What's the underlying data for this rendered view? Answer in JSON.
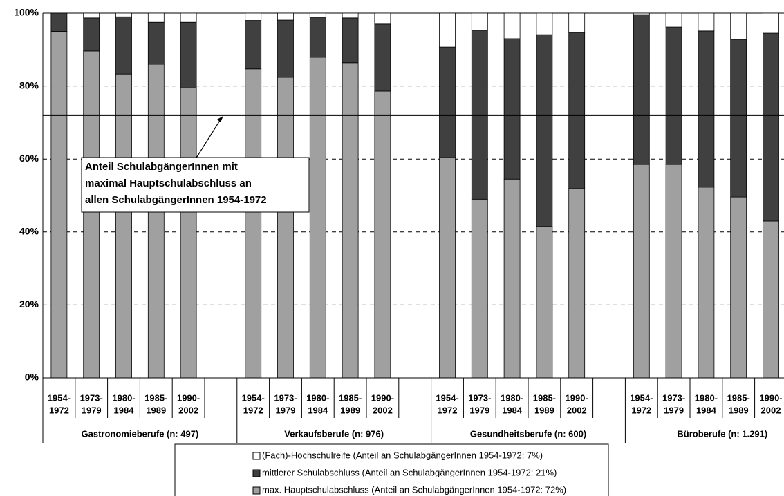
{
  "chart_data": {
    "type": "stacked_bar",
    "ylim": [
      0,
      100
    ],
    "yticks": [
      {
        "value": 0,
        "label": "0%"
      },
      {
        "value": 20,
        "label": "20%"
      },
      {
        "value": 40,
        "label": "40%"
      },
      {
        "value": 60,
        "label": "60%"
      },
      {
        "value": 80,
        "label": "80%"
      },
      {
        "value": 100,
        "label": "100%"
      }
    ],
    "grid": true,
    "groups": [
      {
        "name": "Gastronomieberufe (n: 497)",
        "categories": [
          [
            "1954-",
            "1972"
          ],
          [
            "1973-",
            "1979"
          ],
          [
            "1980-",
            "1984"
          ],
          [
            "1985-",
            "1989"
          ],
          [
            "1990-",
            "2002"
          ]
        ]
      },
      {
        "name": "Verkaufsberufe (n: 976)",
        "categories": [
          [
            "1954-",
            "1972"
          ],
          [
            "1973-",
            "1979"
          ],
          [
            "1980-",
            "1984"
          ],
          [
            "1985-",
            "1989"
          ],
          [
            "1990-",
            "2002"
          ]
        ]
      },
      {
        "name": "Gesundheitsberufe (n: 600)",
        "categories": [
          [
            "1954-",
            "1972"
          ],
          [
            "1973-",
            "1979"
          ],
          [
            "1980-",
            "1984"
          ],
          [
            "1985-",
            "1989"
          ],
          [
            "1990-",
            "2002"
          ]
        ]
      },
      {
        "name": "Büroberufe (n: 1.291)",
        "categories": [
          [
            "1954-",
            "1972"
          ],
          [
            "1973-",
            "1979"
          ],
          [
            "1980-",
            "1984"
          ],
          [
            "1985-",
            "1989"
          ],
          [
            "1990-",
            "2002"
          ]
        ]
      }
    ],
    "series": [
      {
        "name": "max. Hauptschulabschluss (Anteil an SchulabgängerInnen 1954-1972: 72%)",
        "color": "#a0a0a0",
        "values": [
          95,
          89.6,
          83.3,
          86,
          79.5,
          84.7,
          82.4,
          87.9,
          86.4,
          78.6,
          60.4,
          49,
          54.5,
          41.5,
          51.9,
          58.5,
          58.5,
          52.3,
          49.6,
          43
        ]
      },
      {
        "name": "mittlerer Schulabschluss (Anteil an SchulabgängerInnen 1954-1972: 21%)",
        "color": "#404040",
        "values": [
          5,
          9.1,
          15.7,
          11.5,
          18,
          13.3,
          15.7,
          11,
          12.3,
          18.4,
          30.3,
          46.3,
          38.5,
          52.6,
          42.8,
          41.1,
          37.7,
          42.8,
          43.2,
          51.5
        ]
      },
      {
        "name": "(Fach)-Hochschulreife (Anteil an SchulabgängerInnen 1954-1972: 7%)",
        "color": "#ffffff",
        "values": [
          0,
          1.3,
          1,
          2.5,
          2.5,
          2,
          1.9,
          1.1,
          1.3,
          3,
          9.3,
          4.7,
          7,
          5.9,
          5.3,
          0.4,
          3.8,
          4.9,
          7.2,
          5.5
        ]
      }
    ],
    "reference_line": {
      "value": 72,
      "label": [
        "Anteil SchulabgängerInnen mit",
        "maximal Hauptschulabschluss an",
        "allen SchulabgängerInnen 1954-1972"
      ]
    }
  }
}
